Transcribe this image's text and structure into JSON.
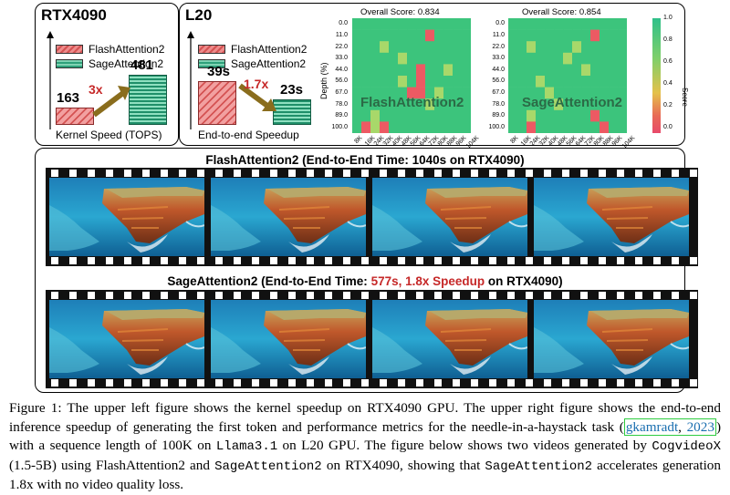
{
  "rtx4090_panel": {
    "title": "RTX4090",
    "legend": [
      "FlashAttention2",
      "SageAttention2"
    ],
    "speedup": "3x",
    "caption": "Kernel Speed (TOPS)"
  },
  "l20_panel": {
    "title": "L20",
    "legend": [
      "FlashAttention2",
      "SageAttention2"
    ],
    "speedup": "1.7x",
    "caption": "End-to-end Speedup"
  },
  "heatmaps": {
    "left_title": "Overall Score: 0.834",
    "right_title": "Overall Score: 0.854",
    "left_label": "FlashAttention2",
    "right_label": "SageAttention2",
    "y_axis_label": "Depth (%)",
    "y_ticks": [
      "0.0",
      "11.0",
      "22.0",
      "33.0",
      "44.0",
      "56.0",
      "67.0",
      "78.0",
      "89.0",
      "100.0"
    ],
    "x_ticks": [
      "8K",
      "16K",
      "24K",
      "32K",
      "40K",
      "48K",
      "56K",
      "64K",
      "72K",
      "80K",
      "88K",
      "96K",
      "104K"
    ],
    "colorbar_label": "Score",
    "colorbar_ticks": [
      "1.0",
      "0.8",
      "0.6",
      "0.4",
      "0.2",
      "0.0"
    ],
    "colors": {
      "high": "#3cc47c",
      "mid": "#a8d86a",
      "low": "#ec5a63"
    }
  },
  "chart_data": [
    {
      "type": "bar",
      "title": "RTX4090",
      "categories": [
        "FlashAttention2",
        "SageAttention2"
      ],
      "values": [
        163,
        481
      ],
      "xlabel": "Kernel Speed (TOPS)"
    },
    {
      "type": "bar",
      "title": "L20",
      "categories": [
        "FlashAttention2",
        "SageAttention2"
      ],
      "values": [
        39,
        23
      ],
      "value_labels": [
        "39s",
        "23s"
      ],
      "xlabel": "End-to-end Speedup"
    }
  ],
  "videos": {
    "flash_title": "FlashAttention2 (End-to-End Time: 1040s on RTX4090)",
    "sage_title_prefix": "SageAttention2 (End-to-End Time: ",
    "sage_title_highlight": "577s, 1.8x Speedup",
    "sage_title_suffix": " on RTX4090)",
    "frame_count": 4
  },
  "figure_caption": {
    "part1": "Figure 1: The upper left figure shows the kernel speedup on RTX4090 GPU. The upper right figure shows the end-to-end inference speedup of generating the first token and performance metrics for the needle-in-a-haystack task (",
    "cite_author": "gkamradt",
    "cite_sep": ", ",
    "cite_year": "2023",
    "part2": ") with a sequence length of 100K on ",
    "llama": "Llama3.1",
    "part3": " on L20 GPU. The figure below shows two videos generated by ",
    "cogvideo": "CogvideoX",
    "part4": " (1.5-5B) using FlashAttention2 and ",
    "sage": "SageAttention2",
    "part5": " on RTX4090, showing that ",
    "sage2": "SageAttention2",
    "part6": " accelerates generation 1.8x with no video quality loss."
  }
}
